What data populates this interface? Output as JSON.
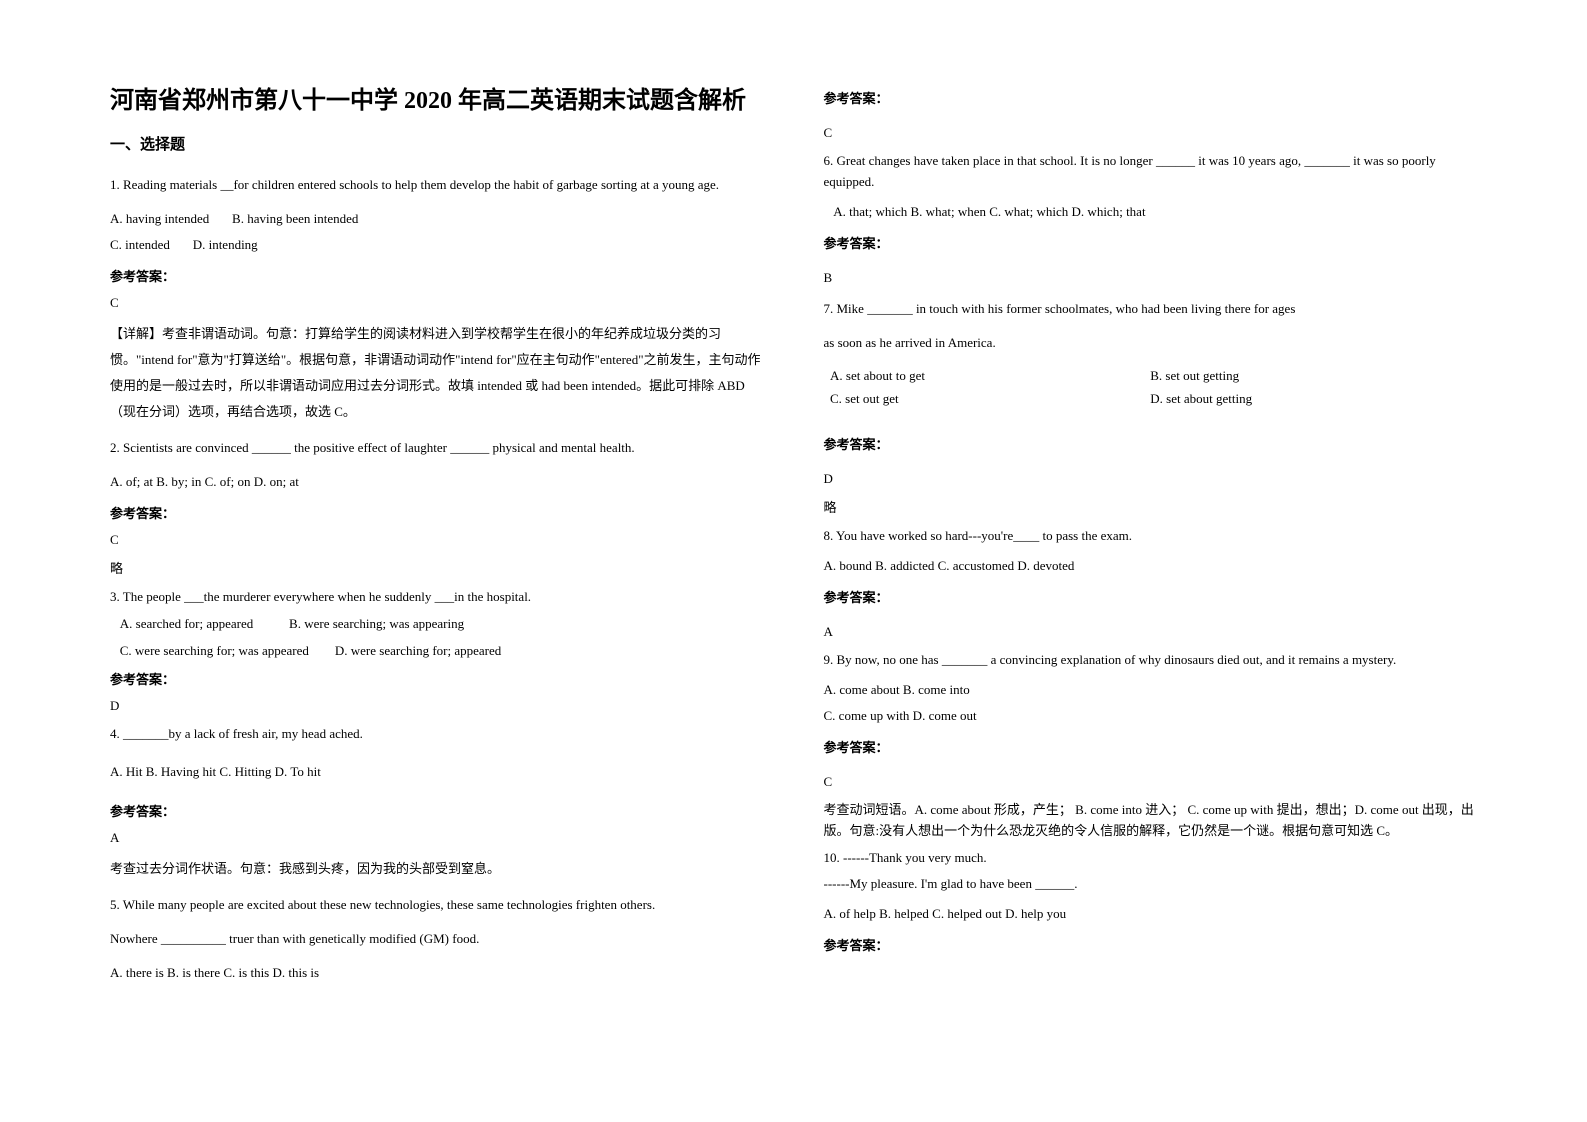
{
  "title": "河南省郑州市第八十一中学 2020 年高二英语期末试题含解析",
  "section1_heading": "一、选择题",
  "answer_label": "参考答案：",
  "omit": "略",
  "q1": {
    "text": "1. Reading materials __for children entered schools to help them develop the habit of garbage sorting at a young age.",
    "optA": "A. having intended",
    "optB": "B. having been intended",
    "optC": "C. intended",
    "optD": "D. intending",
    "answer": "C",
    "explanation": "【详解】考查非谓语动词。句意：打算给学生的阅读材料进入到学校帮学生在很小的年纪养成垃圾分类的习惯。\"intend for\"意为\"打算送给\"。根据句意，非谓语动词动作\"intend for\"应在主句动作\"entered\"之前发生，主句动作使用的是一般过去时，所以非谓语动词应用过去分词形式。故填 intended 或 had been intended。据此可排除 ABD（现在分词）选项，再结合选项，故选 C。"
  },
  "q2": {
    "text": "2. Scientists are convinced ______ the positive effect of laughter ______ physical and mental health.",
    "options": "A. of; at         B. by; in         C. of; on         D. on; at",
    "answer": "C"
  },
  "q3": {
    "text": "3. The people ___the murderer everywhere when he suddenly ___in the hospital.",
    "optA": "A. searched for; appeared",
    "optB": "B. were searching; was appearing",
    "optC": "C. were searching for; was appeared",
    "optD": "D. were searching for; appeared",
    "answer": "D"
  },
  "q4": {
    "text": "4. _______by a lack of fresh air, my head ached.",
    "options": "A. Hit               B. Having hit    C. Hitting        D. To hit",
    "answer": "A",
    "explanation": "考查过去分词作状语。句意：我感到头疼，因为我的头部受到窒息。"
  },
  "q5": {
    "text1": "5. While many people are excited about these new technologies, these same technologies frighten others.",
    "text2": "Nowhere __________ truer than with genetically modified (GM) food.",
    "options": "A. there is         B. is there         C. is this            D. this is",
    "answer": "C"
  },
  "q6": {
    "text": "6. Great changes have taken place in that school. It is no longer ______ it was 10 years ago, _______ it was so poorly equipped.",
    "options": "A. that; which    B. what; when    C. what; which    D. which; that",
    "answer": "B"
  },
  "q7": {
    "text1": "7. Mike _______ in touch with his former schoolmates, who had been living there for ages",
    "text2": "as soon as he arrived in America.",
    "optA": "A. set about to get",
    "optB": "B. set out getting",
    "optC": "C. set out get",
    "optD": "D. set about getting",
    "answer": "D"
  },
  "q8": {
    "text": "8. You have worked so hard---you're____ to pass the exam.",
    "options": "A. bound    B. addicted    C. accustomed    D. devoted",
    "answer": "A"
  },
  "q9": {
    "text": "9. By now, no one has _______ a convincing explanation of why dinosaurs died out, and it remains a mystery.",
    "optAB": "A. come about    B. come into",
    "optCD": "C. come up with    D. come out",
    "answer": "C",
    "explanation": "考查动词短语。A. come about 形成，产生；         B. come into 进入；  C. come up with   提出，想出；D. come out 出现，出版。句意:没有人想出一个为什么恐龙灭绝的令人信服的解释，它仍然是一个谜。根据句意可知选 C。"
  },
  "q10": {
    "text1": "10. ------Thank you very much.",
    "text2": "------My pleasure. I'm glad to have been ______.",
    "options": "A. of help      B. helped      C. helped out    D. help you"
  }
}
